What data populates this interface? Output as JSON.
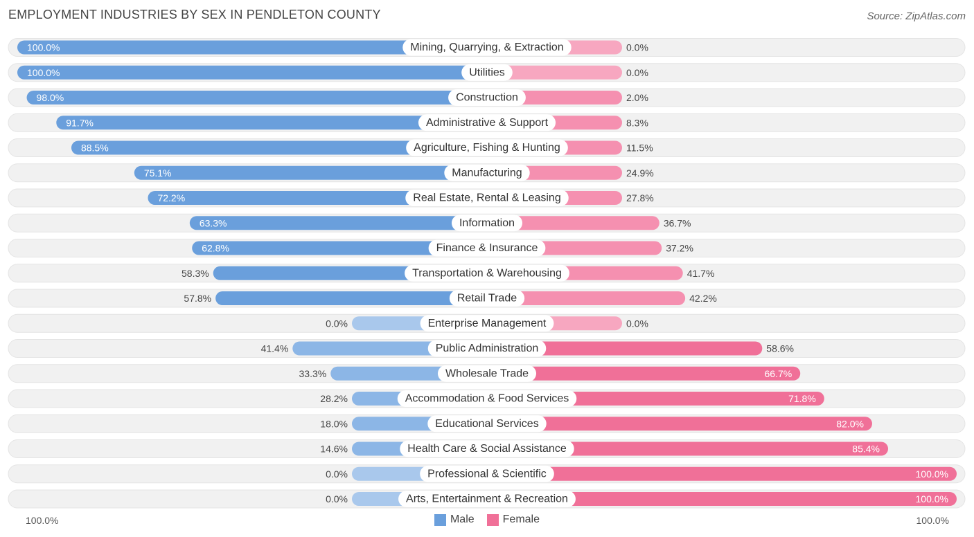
{
  "title": "EMPLOYMENT INDUSTRIES BY SEX IN PENDLETON COUNTY",
  "source": "Source: ZipAtlas.com",
  "colors": {
    "male": "#6a9fdc",
    "male_light": "#a9c8ec",
    "female": "#f07098",
    "female_light": "#f7a7c0",
    "track": "#f1f1f1"
  },
  "chart_data": {
    "type": "bar",
    "orientation": "horizontal-diverging",
    "title": "EMPLOYMENT INDUSTRIES BY SEX IN PENDLETON COUNTY",
    "categories": [
      "Mining, Quarrying, & Extraction",
      "Utilities",
      "Construction",
      "Administrative & Support",
      "Agriculture, Fishing & Hunting",
      "Manufacturing",
      "Real Estate, Rental & Leasing",
      "Information",
      "Finance & Insurance",
      "Transportation & Warehousing",
      "Retail Trade",
      "Enterprise Management",
      "Public Administration",
      "Wholesale Trade",
      "Accommodation & Food Services",
      "Educational Services",
      "Health Care & Social Assistance",
      "Professional & Scientific",
      "Arts, Entertainment & Recreation"
    ],
    "series": [
      {
        "name": "Male",
        "values": [
          100.0,
          100.0,
          98.0,
          91.7,
          88.5,
          75.1,
          72.2,
          63.3,
          62.8,
          58.3,
          57.8,
          0.0,
          41.4,
          33.3,
          28.2,
          18.0,
          14.6,
          0.0,
          0.0
        ],
        "labels": [
          "100.0%",
          "100.0%",
          "98.0%",
          "91.7%",
          "88.5%",
          "75.1%",
          "72.2%",
          "63.3%",
          "62.8%",
          "58.3%",
          "57.8%",
          "0.0%",
          "41.4%",
          "33.3%",
          "28.2%",
          "18.0%",
          "14.6%",
          "0.0%",
          "0.0%"
        ]
      },
      {
        "name": "Female",
        "values": [
          0.0,
          0.0,
          2.0,
          8.3,
          11.5,
          24.9,
          27.8,
          36.7,
          37.2,
          41.7,
          42.2,
          0.0,
          58.6,
          66.7,
          71.8,
          82.0,
          85.4,
          100.0,
          100.0
        ],
        "labels": [
          "0.0%",
          "0.0%",
          "2.0%",
          "8.3%",
          "11.5%",
          "24.9%",
          "27.8%",
          "36.7%",
          "37.2%",
          "41.7%",
          "42.2%",
          "0.0%",
          "58.6%",
          "66.7%",
          "71.8%",
          "82.0%",
          "85.4%",
          "100.0%",
          "100.0%"
        ]
      }
    ],
    "xlim": [
      -100,
      100
    ],
    "axis_left_label": "100.0%",
    "axis_right_label": "100.0%",
    "legend": [
      "Male",
      "Female"
    ],
    "legend_position": "bottom-center"
  }
}
